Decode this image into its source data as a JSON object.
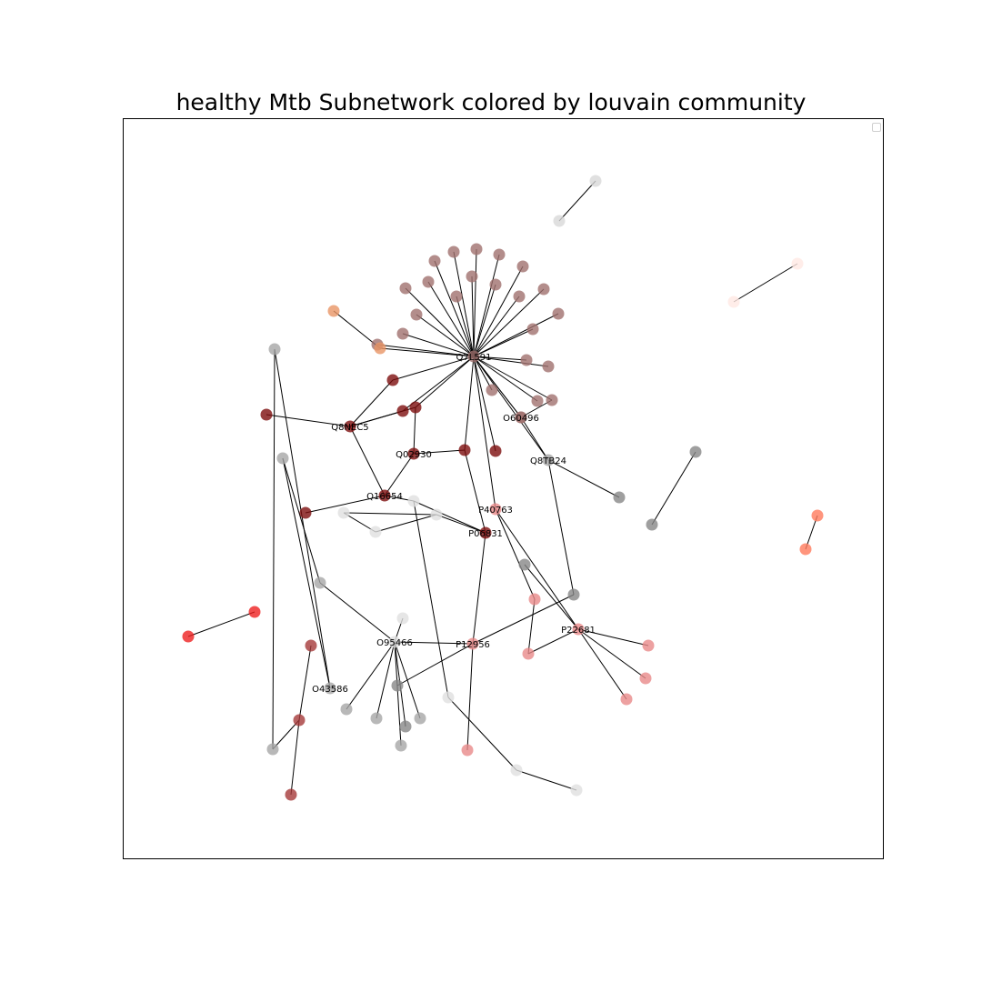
{
  "title": "healthy Mtb Subnetwork colored by louvain community",
  "legend": {
    "visible": true,
    "entries": []
  },
  "community_colors": {
    "c1": "#a0706e",
    "c2": "#7d0e0e",
    "c3": "#a6a6a6",
    "c4": "#878787",
    "c5": "#e98a8a",
    "c6": "#e0e0e0",
    "c7": "#a53a3a",
    "c8": "#d8d8d8",
    "c9": "#e89565",
    "c10": "#ffe8e4",
    "c11": "#ff7a5c",
    "c12": "#ee2020"
  },
  "nodes": [
    {
      "id": "Q7L591",
      "label": "Q7L591",
      "c": "c1"
    },
    {
      "id": "h1",
      "c": "c1"
    },
    {
      "id": "h2",
      "c": "c1"
    },
    {
      "id": "h3",
      "c": "c1"
    },
    {
      "id": "h4",
      "c": "c1"
    },
    {
      "id": "h5",
      "c": "c1"
    },
    {
      "id": "h6",
      "c": "c1"
    },
    {
      "id": "h7",
      "c": "c1"
    },
    {
      "id": "h8",
      "c": "c1"
    },
    {
      "id": "h9",
      "c": "c1"
    },
    {
      "id": "h10",
      "c": "c1"
    },
    {
      "id": "h11",
      "c": "c1"
    },
    {
      "id": "h12",
      "c": "c1"
    },
    {
      "id": "h13",
      "c": "c1"
    },
    {
      "id": "h14",
      "c": "c1"
    },
    {
      "id": "h15",
      "c": "c1"
    },
    {
      "id": "h16",
      "c": "c1"
    },
    {
      "id": "h17",
      "c": "c1"
    },
    {
      "id": "h18",
      "c": "c1"
    },
    {
      "id": "h19",
      "c": "c1"
    },
    {
      "id": "h20",
      "c": "c1"
    },
    {
      "id": "h21",
      "c": "c1"
    },
    {
      "id": "h22",
      "c": "c1"
    },
    {
      "id": "h23",
      "c": "c1"
    },
    {
      "id": "O60496",
      "label": "O60496",
      "c": "c1"
    },
    {
      "id": "h24",
      "c": "c9"
    },
    {
      "id": "h25",
      "c": "c9"
    },
    {
      "id": "Q8NEC5",
      "label": "Q8NEC5",
      "c": "c2"
    },
    {
      "id": "Q02930",
      "label": "Q02930",
      "c": "c2"
    },
    {
      "id": "Q16654",
      "label": "Q16654",
      "c": "c2"
    },
    {
      "id": "P06831",
      "label": "P06831",
      "c": "c2"
    },
    {
      "id": "r1",
      "c": "c2"
    },
    {
      "id": "r2",
      "c": "c2"
    },
    {
      "id": "r3",
      "c": "c2"
    },
    {
      "id": "r4",
      "c": "c2"
    },
    {
      "id": "r5",
      "c": "c2"
    },
    {
      "id": "r6",
      "c": "c2"
    },
    {
      "id": "r7",
      "c": "c2"
    },
    {
      "id": "Q8TB24",
      "label": "Q8TB24",
      "c": "c3"
    },
    {
      "id": "g1",
      "c": "c4"
    },
    {
      "id": "g2",
      "c": "c4"
    },
    {
      "id": "g3",
      "c": "c4"
    },
    {
      "id": "g4",
      "c": "c4"
    },
    {
      "id": "g5",
      "c": "c4"
    },
    {
      "id": "g6",
      "c": "c4"
    },
    {
      "id": "g7",
      "c": "c4"
    },
    {
      "id": "P40763",
      "label": "P40763",
      "c": "c5"
    },
    {
      "id": "P12956",
      "label": "P12956",
      "c": "c5"
    },
    {
      "id": "P22681",
      "label": "P22681",
      "c": "c5"
    },
    {
      "id": "p1",
      "c": "c5"
    },
    {
      "id": "p2",
      "c": "c5"
    },
    {
      "id": "p3",
      "c": "c5"
    },
    {
      "id": "p4",
      "c": "c5"
    },
    {
      "id": "p5",
      "c": "c5"
    },
    {
      "id": "p6",
      "c": "c5"
    },
    {
      "id": "O95466",
      "label": "O95466",
      "c": "c6"
    },
    {
      "id": "l1",
      "c": "c6"
    },
    {
      "id": "l2",
      "c": "c6"
    },
    {
      "id": "l3",
      "c": "c6"
    },
    {
      "id": "l4",
      "c": "c6"
    },
    {
      "id": "l5",
      "c": "c6"
    },
    {
      "id": "l6",
      "c": "c6"
    },
    {
      "id": "l7",
      "c": "c6"
    },
    {
      "id": "l8",
      "c": "c6"
    },
    {
      "id": "O43586",
      "label": "O43586",
      "c": "c3"
    },
    {
      "id": "m1",
      "c": "c3"
    },
    {
      "id": "m2",
      "c": "c3"
    },
    {
      "id": "m3",
      "c": "c3"
    },
    {
      "id": "m4",
      "c": "c3"
    },
    {
      "id": "m5",
      "c": "c3"
    },
    {
      "id": "m6",
      "c": "c3"
    },
    {
      "id": "m7",
      "c": "c3"
    },
    {
      "id": "m8",
      "c": "c3"
    },
    {
      "id": "d1",
      "c": "c7"
    },
    {
      "id": "d2",
      "c": "c7"
    },
    {
      "id": "d3",
      "c": "c7"
    },
    {
      "id": "s1",
      "c": "c8"
    },
    {
      "id": "s2",
      "c": "c8"
    },
    {
      "id": "w1",
      "c": "c10"
    },
    {
      "id": "w2",
      "c": "c10"
    },
    {
      "id": "o1",
      "c": "c11"
    },
    {
      "id": "o2",
      "c": "c11"
    },
    {
      "id": "e1",
      "c": "c12"
    },
    {
      "id": "e2",
      "c": "c12"
    }
  ],
  "edges": [
    [
      "Q7L591",
      "h1"
    ],
    [
      "Q7L591",
      "h2"
    ],
    [
      "Q7L591",
      "h3"
    ],
    [
      "Q7L591",
      "h4"
    ],
    [
      "Q7L591",
      "h5"
    ],
    [
      "Q7L591",
      "h6"
    ],
    [
      "Q7L591",
      "h7"
    ],
    [
      "Q7L591",
      "h8"
    ],
    [
      "Q7L591",
      "h9"
    ],
    [
      "Q7L591",
      "h10"
    ],
    [
      "Q7L591",
      "h11"
    ],
    [
      "Q7L591",
      "h12"
    ],
    [
      "Q7L591",
      "h13"
    ],
    [
      "Q7L591",
      "h14"
    ],
    [
      "Q7L591",
      "h15"
    ],
    [
      "Q7L591",
      "h16"
    ],
    [
      "Q7L591",
      "h17"
    ],
    [
      "Q7L591",
      "h18"
    ],
    [
      "Q7L591",
      "h19"
    ],
    [
      "Q7L591",
      "h20"
    ],
    [
      "Q7L591",
      "h21"
    ],
    [
      "Q7L591",
      "h22"
    ],
    [
      "Q7L591",
      "h23"
    ],
    [
      "Q7L591",
      "O60496"
    ],
    [
      "Q7L591",
      "h24"
    ],
    [
      "Q7L591",
      "r1"
    ],
    [
      "Q7L591",
      "r2"
    ],
    [
      "Q7L591",
      "r3"
    ],
    [
      "Q7L591",
      "r4"
    ],
    [
      "Q7L591",
      "r5"
    ],
    [
      "Q7L591",
      "P40763"
    ],
    [
      "Q7L591",
      "Q8TB24"
    ],
    [
      "h24",
      "h25"
    ],
    [
      "Q8NEC5",
      "r1"
    ],
    [
      "Q8NEC5",
      "r2"
    ],
    [
      "Q8NEC5",
      "r3"
    ],
    [
      "Q8NEC5",
      "r6"
    ],
    [
      "Q8NEC5",
      "Q16654"
    ],
    [
      "Q02930",
      "r2"
    ],
    [
      "Q02930",
      "r4"
    ],
    [
      "Q02930",
      "Q16654"
    ],
    [
      "Q16654",
      "r7"
    ],
    [
      "Q16654",
      "l1"
    ],
    [
      "r4",
      "P06831"
    ],
    [
      "l1",
      "P06831"
    ],
    [
      "l2",
      "P06831"
    ],
    [
      "l3",
      "l2"
    ],
    [
      "l3",
      "l4"
    ],
    [
      "l2",
      "l4"
    ],
    [
      "P06831",
      "P12956"
    ],
    [
      "P40763",
      "p1"
    ],
    [
      "P40763",
      "P22681"
    ],
    [
      "O60496",
      "h22"
    ],
    [
      "O60496",
      "h23"
    ],
    [
      "h23",
      "Q8TB24"
    ],
    [
      "Q8TB24",
      "g1"
    ],
    [
      "Q8TB24",
      "g2"
    ],
    [
      "g2",
      "P12956"
    ],
    [
      "g3",
      "g4"
    ],
    [
      "P12956",
      "g5"
    ],
    [
      "g6",
      "P22681"
    ],
    [
      "P22681",
      "p2"
    ],
    [
      "P22681",
      "p3"
    ],
    [
      "P22681",
      "p4"
    ],
    [
      "P22681",
      "p5"
    ],
    [
      "p5",
      "p1"
    ],
    [
      "P12956",
      "p6"
    ],
    [
      "O95466",
      "P12956"
    ],
    [
      "O95466",
      "l5"
    ],
    [
      "O95466",
      "m1"
    ],
    [
      "O95466",
      "m2"
    ],
    [
      "O95466",
      "m3"
    ],
    [
      "O95466",
      "m4"
    ],
    [
      "O95466",
      "m5"
    ],
    [
      "O95466",
      "g7"
    ],
    [
      "O43586",
      "m6"
    ],
    [
      "O43586",
      "m7"
    ],
    [
      "m6",
      "m1"
    ],
    [
      "m7",
      "m8"
    ],
    [
      "l1",
      "l6"
    ],
    [
      "l6",
      "l7"
    ],
    [
      "l7",
      "l8"
    ],
    [
      "d1",
      "d2"
    ],
    [
      "d2",
      "d3"
    ],
    [
      "d2",
      "m8"
    ],
    [
      "s1",
      "s2"
    ],
    [
      "w1",
      "w2"
    ],
    [
      "o1",
      "o2"
    ],
    [
      "e1",
      "e2"
    ]
  ]
}
